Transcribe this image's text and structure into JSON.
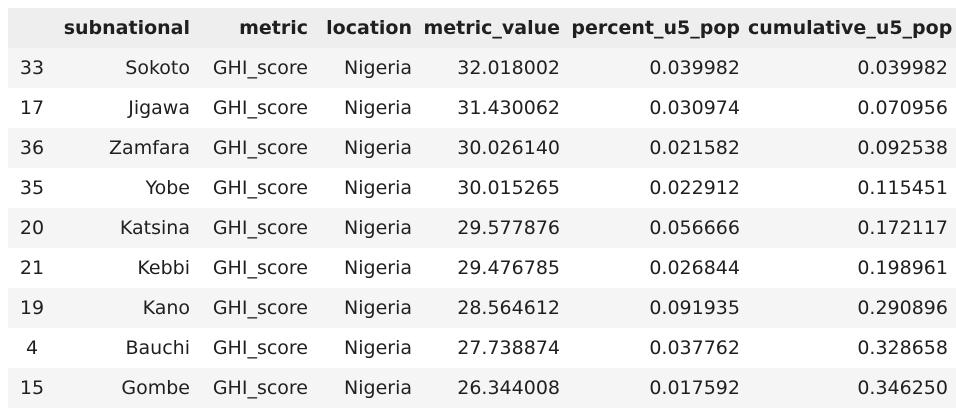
{
  "table": {
    "columns": [
      "",
      "subnational",
      "metric",
      "location",
      "metric_value",
      "percent_u5_pop",
      "cumulative_u5_pop"
    ],
    "rows": [
      [
        "33",
        "Sokoto",
        "GHI_score",
        "Nigeria",
        "32.018002",
        "0.039982",
        "0.039982"
      ],
      [
        "17",
        "Jigawa",
        "GHI_score",
        "Nigeria",
        "31.430062",
        "0.030974",
        "0.070956"
      ],
      [
        "36",
        "Zamfara",
        "GHI_score",
        "Nigeria",
        "30.026140",
        "0.021582",
        "0.092538"
      ],
      [
        "35",
        "Yobe",
        "GHI_score",
        "Nigeria",
        "30.015265",
        "0.022912",
        "0.115451"
      ],
      [
        "20",
        "Katsina",
        "GHI_score",
        "Nigeria",
        "29.577876",
        "0.056666",
        "0.172117"
      ],
      [
        "21",
        "Kebbi",
        "GHI_score",
        "Nigeria",
        "29.476785",
        "0.026844",
        "0.198961"
      ],
      [
        "19",
        "Kano",
        "GHI_score",
        "Nigeria",
        "28.564612",
        "0.091935",
        "0.290896"
      ],
      [
        "4",
        "Bauchi",
        "GHI_score",
        "Nigeria",
        "27.738874",
        "0.037762",
        "0.328658"
      ],
      [
        "15",
        "Gombe",
        "GHI_score",
        "Nigeria",
        "26.344008",
        "0.017592",
        "0.346250"
      ]
    ]
  }
}
